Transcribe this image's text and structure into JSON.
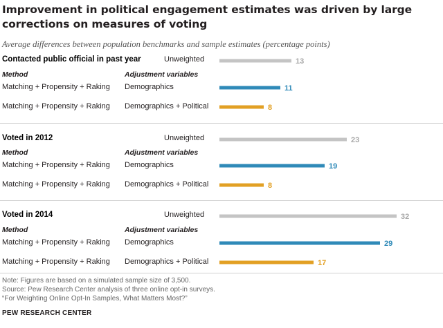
{
  "title": "Improvement in political engagement estimates was driven by large corrections on measures of voting",
  "subtitle": "Average differences between population benchmarks and sample estimates (percentage points)",
  "column_headers": {
    "method": "Method",
    "adjustment": "Adjustment variables"
  },
  "colors": {
    "unweighted": "#c4c4c4",
    "demographics": "#2f8ab8",
    "political": "#e2a024"
  },
  "chart_data": {
    "type": "bar",
    "orientation": "horizontal",
    "xlim": [
      0,
      32
    ],
    "groups": [
      {
        "title": "Contacted public official in past year",
        "rows": [
          {
            "method": "",
            "adjustment": "Unweighted",
            "value": 13,
            "series": "unweighted"
          },
          {
            "method": "Matching + Propensity + Raking",
            "adjustment": "Demographics",
            "value": 11,
            "series": "demographics"
          },
          {
            "method": "Matching + Propensity + Raking",
            "adjustment": "Demographics + Political",
            "value": 8,
            "series": "political"
          }
        ]
      },
      {
        "title": "Voted in 2012",
        "rows": [
          {
            "method": "",
            "adjustment": "Unweighted",
            "value": 23,
            "series": "unweighted"
          },
          {
            "method": "Matching + Propensity + Raking",
            "adjustment": "Demographics",
            "value": 19,
            "series": "demographics"
          },
          {
            "method": "Matching + Propensity + Raking",
            "adjustment": "Demographics + Political",
            "value": 8,
            "series": "political"
          }
        ]
      },
      {
        "title": "Voted in 2014",
        "rows": [
          {
            "method": "",
            "adjustment": "Unweighted",
            "value": 32,
            "series": "unweighted"
          },
          {
            "method": "Matching + Propensity + Raking",
            "adjustment": "Demographics",
            "value": 29,
            "series": "demographics"
          },
          {
            "method": "Matching + Propensity + Raking",
            "adjustment": "Demographics + Political",
            "value": 17,
            "series": "political"
          }
        ]
      }
    ]
  },
  "notes": [
    "Note: Figures are based on a simulated sample size of 3,500.",
    "Source: Pew Research Center analysis of three online opt-in surveys.",
    "“For Weighting Online Opt-In Samples, What Matters Most?”"
  ],
  "source_org": "PEW RESEARCH CENTER"
}
